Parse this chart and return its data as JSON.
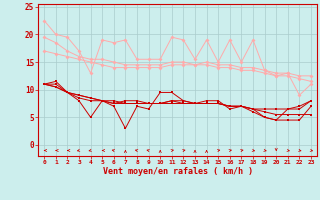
{
  "x": [
    0,
    1,
    2,
    3,
    4,
    5,
    6,
    7,
    8,
    9,
    10,
    11,
    12,
    13,
    14,
    15,
    16,
    17,
    18,
    19,
    20,
    21,
    22,
    23
  ],
  "line1": [
    22.5,
    20.0,
    19.5,
    17.0,
    13.0,
    19.0,
    18.5,
    19.0,
    15.5,
    15.5,
    15.5,
    19.5,
    19.0,
    15.5,
    19.0,
    15.0,
    19.0,
    15.0,
    19.0,
    13.5,
    12.5,
    13.0,
    9.0,
    11.0
  ],
  "line2": [
    19.5,
    18.5,
    17.0,
    16.0,
    15.5,
    15.5,
    15.0,
    14.5,
    14.5,
    14.5,
    14.5,
    15.0,
    15.0,
    14.5,
    15.0,
    14.5,
    14.5,
    14.0,
    14.0,
    13.5,
    13.0,
    13.0,
    12.5,
    12.5
  ],
  "line3": [
    17.0,
    16.5,
    16.0,
    15.5,
    15.0,
    14.5,
    14.0,
    14.0,
    14.0,
    14.0,
    14.0,
    14.5,
    14.5,
    14.5,
    14.5,
    14.0,
    14.0,
    13.5,
    13.5,
    13.0,
    12.5,
    12.5,
    12.0,
    11.5
  ],
  "line4": [
    11.0,
    11.5,
    9.5,
    8.0,
    5.0,
    8.0,
    7.0,
    3.0,
    7.0,
    6.5,
    9.5,
    9.5,
    8.0,
    7.5,
    8.0,
    8.0,
    6.5,
    7.0,
    6.5,
    5.0,
    4.5,
    4.5,
    4.5,
    7.0
  ],
  "line5": [
    11.0,
    11.0,
    9.5,
    8.5,
    8.0,
    8.0,
    7.5,
    8.0,
    8.0,
    7.5,
    7.5,
    8.0,
    8.0,
    7.5,
    7.5,
    7.5,
    7.0,
    7.0,
    6.0,
    5.0,
    4.5,
    6.5,
    7.0,
    8.0
  ],
  "line6": [
    11.0,
    10.5,
    9.5,
    9.0,
    8.5,
    8.0,
    8.0,
    7.5,
    7.5,
    7.5,
    7.5,
    7.5,
    7.5,
    7.5,
    7.5,
    7.5,
    7.0,
    7.0,
    6.5,
    6.0,
    5.5,
    5.5,
    5.5,
    5.5
  ],
  "line7": [
    11.0,
    10.5,
    9.5,
    9.0,
    8.5,
    8.0,
    7.5,
    7.5,
    7.5,
    7.5,
    7.5,
    8.0,
    7.5,
    7.5,
    7.5,
    7.5,
    7.0,
    7.0,
    6.5,
    6.5,
    6.5,
    6.5,
    6.5,
    8.0
  ],
  "light_pink": "#ffaaaa",
  "dark_red": "#cc0000",
  "bg_color": "#cceeed",
  "grid_color": "#aacccc",
  "xlabel": "Vent moyen/en rafales ( km/h )",
  "ylim_min": 0,
  "ylim_max": 25,
  "arrow_angles": [
    180,
    180,
    180,
    225,
    225,
    180,
    135,
    90,
    135,
    135,
    90,
    45,
    45,
    90,
    90,
    45,
    45,
    45,
    315,
    315,
    270,
    315,
    315,
    315
  ]
}
